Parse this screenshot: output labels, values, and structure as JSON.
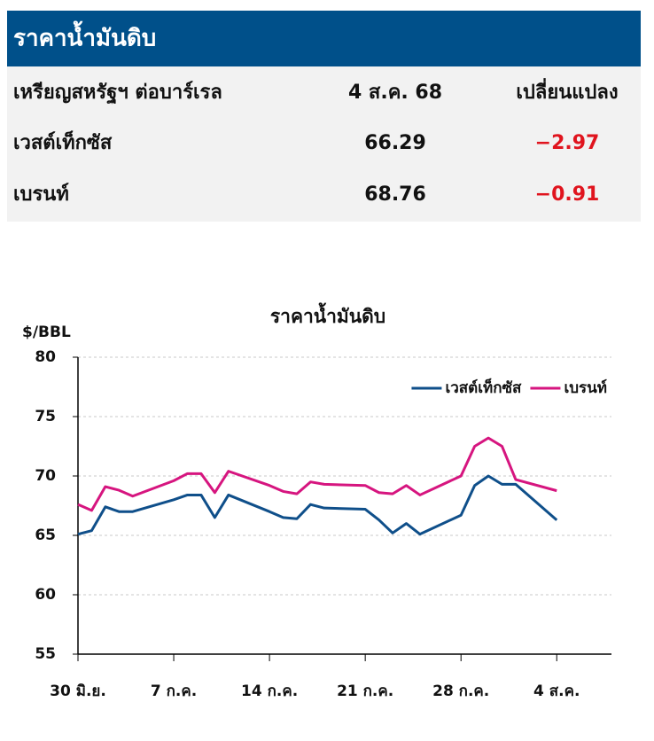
{
  "table": {
    "title": "ราคาน้ำมันดิบ",
    "rows": [
      [
        "เหรียญสหรัฐฯ ต่อบาร์เรล",
        "4 ส.ค. 68",
        "เปลี่ยนแปลง"
      ],
      [
        "เวสต์เท็กซัส",
        "66.29",
        "−2.97"
      ],
      [
        "เบรนท์",
        "68.76",
        "−0.91"
      ]
    ]
  },
  "chart_data": {
    "type": "line",
    "title": "ราคาน้ำมันดิบ",
    "y_label": "$/BBL",
    "x": [
      0,
      1,
      2,
      3,
      4,
      7,
      8,
      9,
      10,
      11,
      14,
      15,
      16,
      17,
      18,
      21,
      22,
      23,
      24,
      25,
      28,
      29,
      30,
      31,
      32,
      35
    ],
    "series": [
      {
        "name": "เวสต์เท็กซัส",
        "color": "#0f4f8a",
        "values": [
          65.1,
          65.4,
          67.4,
          67.0,
          67.0,
          68.0,
          68.4,
          68.4,
          66.5,
          68.4,
          67.0,
          66.5,
          66.4,
          67.6,
          67.3,
          67.2,
          66.3,
          65.2,
          66.0,
          65.1,
          66.7,
          69.2,
          70.0,
          69.3,
          69.3,
          66.29
        ]
      },
      {
        "name": "เบรนท์",
        "color": "#d6157f",
        "values": [
          67.6,
          67.1,
          69.1,
          68.8,
          68.3,
          69.6,
          70.2,
          70.2,
          68.6,
          70.4,
          69.2,
          68.7,
          68.5,
          69.5,
          69.3,
          69.2,
          68.6,
          68.5,
          69.2,
          68.4,
          70.0,
          72.5,
          73.2,
          72.5,
          69.7,
          68.76
        ]
      }
    ],
    "xlim": [
      0,
      39
    ],
    "ylim": [
      55,
      80
    ],
    "xticks": [
      {
        "value": 0,
        "label": "30 มิ.ย."
      },
      {
        "value": 7,
        "label": "7 ก.ค."
      },
      {
        "value": 14,
        "label": "14 ก.ค."
      },
      {
        "value": 21,
        "label": "21 ก.ค."
      },
      {
        "value": 28,
        "label": "28 ก.ค."
      },
      {
        "value": 35,
        "label": "4 ส.ค."
      }
    ],
    "yticks": [
      55,
      60,
      65,
      70,
      75,
      80
    ],
    "grid": true,
    "legend": "top-right"
  }
}
